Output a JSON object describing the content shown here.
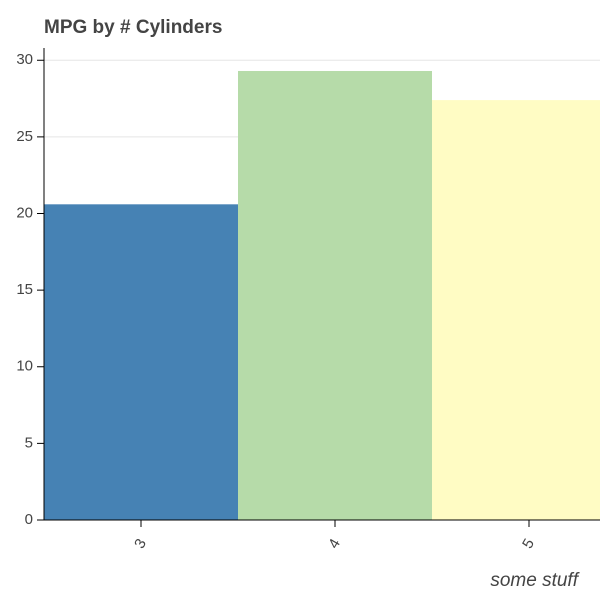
{
  "chart_data": {
    "type": "bar",
    "title": "MPG by # Cylinders",
    "x_label": "some stuff",
    "categories": [
      "3",
      "4",
      "5"
    ],
    "values": [
      20.6,
      29.3,
      27.4
    ],
    "colors": [
      "#4682b4",
      "#b6dba9",
      "#fffcc4"
    ],
    "ylim": [
      0,
      30.8
    ],
    "yticks": [
      0,
      5,
      10,
      15,
      20,
      25,
      30
    ],
    "grid": true
  }
}
